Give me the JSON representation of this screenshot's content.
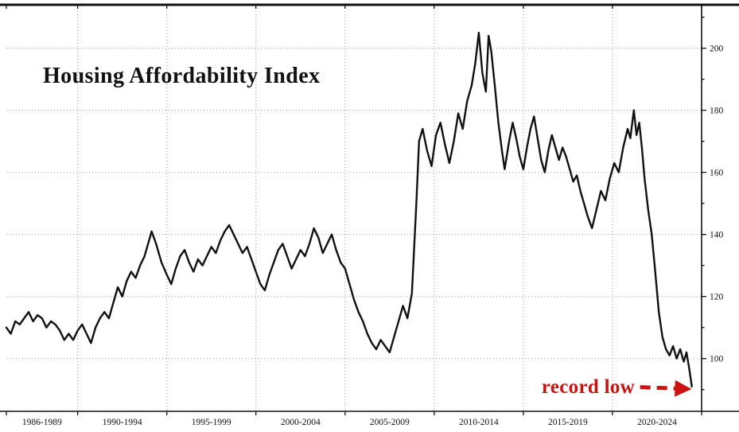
{
  "figure": {
    "background": "#ffffff"
  },
  "chart_data": {
    "type": "line",
    "title": "Housing Affordability Index",
    "xlabel": "",
    "ylabel": "",
    "grid": true,
    "legend": "none",
    "axis_color": "#111111",
    "grid_color": "#9a9a9a",
    "xlim": [
      1986,
      2025
    ],
    "ylim": [
      83,
      214
    ],
    "yticks": [
      100,
      120,
      140,
      160,
      180,
      200
    ],
    "y_minor_step": 10,
    "x_boundaries": [
      1986,
      1990,
      1995,
      2000,
      2005,
      2010,
      2015,
      2020,
      2025
    ],
    "x_period_labels": [
      {
        "label": "1986-1989",
        "start": 1986,
        "end": 1990
      },
      {
        "label": "1990-1994",
        "start": 1990,
        "end": 1995
      },
      {
        "label": "1995-1999",
        "start": 1995,
        "end": 2000
      },
      {
        "label": "2000-2004",
        "start": 2000,
        "end": 2005
      },
      {
        "label": "2005-2009",
        "start": 2005,
        "end": 2010
      },
      {
        "label": "2010-2014",
        "start": 2010,
        "end": 2015
      },
      {
        "label": "2015-2019",
        "start": 2015,
        "end": 2020
      },
      {
        "label": "2020-2024",
        "start": 2020,
        "end": 2025
      }
    ],
    "annotation": {
      "text": "record low",
      "color": "#cc1111",
      "arrow": {
        "from": [
          2021.55,
          90.8
        ],
        "to": [
          2024.25,
          90.2
        ]
      }
    },
    "series": [
      {
        "name": "Housing Affordability Index",
        "color": "#111111",
        "points": [
          [
            1986.0,
            110
          ],
          [
            1986.25,
            108
          ],
          [
            1986.5,
            112
          ],
          [
            1986.75,
            111
          ],
          [
            1987.0,
            113
          ],
          [
            1987.25,
            115
          ],
          [
            1987.5,
            112
          ],
          [
            1987.75,
            114
          ],
          [
            1988.0,
            113
          ],
          [
            1988.25,
            110
          ],
          [
            1988.5,
            112
          ],
          [
            1988.75,
            111
          ],
          [
            1989.0,
            109
          ],
          [
            1989.25,
            106
          ],
          [
            1989.5,
            108
          ],
          [
            1989.75,
            106
          ],
          [
            1990.0,
            109
          ],
          [
            1990.25,
            111
          ],
          [
            1990.5,
            108
          ],
          [
            1990.75,
            105
          ],
          [
            1991.0,
            110
          ],
          [
            1991.25,
            113
          ],
          [
            1991.5,
            115
          ],
          [
            1991.75,
            113
          ],
          [
            1992.0,
            118
          ],
          [
            1992.25,
            123
          ],
          [
            1992.5,
            120
          ],
          [
            1992.75,
            125
          ],
          [
            1993.0,
            128
          ],
          [
            1993.25,
            126
          ],
          [
            1993.5,
            130
          ],
          [
            1993.75,
            133
          ],
          [
            1994.0,
            138
          ],
          [
            1994.15,
            141
          ],
          [
            1994.4,
            137
          ],
          [
            1994.7,
            131
          ],
          [
            1995.0,
            127
          ],
          [
            1995.25,
            124
          ],
          [
            1995.5,
            129
          ],
          [
            1995.75,
            133
          ],
          [
            1996.0,
            135
          ],
          [
            1996.25,
            131
          ],
          [
            1996.5,
            128
          ],
          [
            1996.75,
            132
          ],
          [
            1997.0,
            130
          ],
          [
            1997.25,
            133
          ],
          [
            1997.5,
            136
          ],
          [
            1997.75,
            134
          ],
          [
            1998.0,
            138
          ],
          [
            1998.25,
            141
          ],
          [
            1998.5,
            143
          ],
          [
            1998.75,
            140
          ],
          [
            1999.0,
            137
          ],
          [
            1999.25,
            134
          ],
          [
            1999.5,
            136
          ],
          [
            1999.75,
            132
          ],
          [
            2000.0,
            128
          ],
          [
            2000.25,
            124
          ],
          [
            2000.5,
            122
          ],
          [
            2000.75,
            127
          ],
          [
            2001.0,
            131
          ],
          [
            2001.25,
            135
          ],
          [
            2001.5,
            137
          ],
          [
            2001.75,
            133
          ],
          [
            2002.0,
            129
          ],
          [
            2002.25,
            132
          ],
          [
            2002.5,
            135
          ],
          [
            2002.75,
            133
          ],
          [
            2003.0,
            137
          ],
          [
            2003.25,
            142
          ],
          [
            2003.5,
            139
          ],
          [
            2003.75,
            134
          ],
          [
            2004.0,
            137
          ],
          [
            2004.25,
            140
          ],
          [
            2004.5,
            135
          ],
          [
            2004.75,
            131
          ],
          [
            2005.0,
            129
          ],
          [
            2005.25,
            124
          ],
          [
            2005.5,
            119
          ],
          [
            2005.75,
            115
          ],
          [
            2006.0,
            112
          ],
          [
            2006.25,
            108
          ],
          [
            2006.5,
            105
          ],
          [
            2006.75,
            103
          ],
          [
            2007.0,
            106
          ],
          [
            2007.25,
            104
          ],
          [
            2007.5,
            102
          ],
          [
            2007.75,
            107
          ],
          [
            2008.0,
            112
          ],
          [
            2008.25,
            117
          ],
          [
            2008.5,
            113
          ],
          [
            2008.75,
            121
          ],
          [
            2009.0,
            150
          ],
          [
            2009.15,
            170
          ],
          [
            2009.35,
            174
          ],
          [
            2009.6,
            167
          ],
          [
            2009.85,
            162
          ],
          [
            2010.1,
            172
          ],
          [
            2010.35,
            176
          ],
          [
            2010.6,
            169
          ],
          [
            2010.85,
            163
          ],
          [
            2011.1,
            170
          ],
          [
            2011.35,
            179
          ],
          [
            2011.6,
            174
          ],
          [
            2011.85,
            183
          ],
          [
            2012.1,
            188
          ],
          [
            2012.3,
            195
          ],
          [
            2012.5,
            205
          ],
          [
            2012.7,
            192
          ],
          [
            2012.9,
            186
          ],
          [
            2013.05,
            204
          ],
          [
            2013.2,
            199
          ],
          [
            2013.4,
            188
          ],
          [
            2013.6,
            176
          ],
          [
            2013.8,
            167
          ],
          [
            2013.95,
            161
          ],
          [
            2014.2,
            170
          ],
          [
            2014.4,
            176
          ],
          [
            2014.6,
            171
          ],
          [
            2014.8,
            165
          ],
          [
            2015.0,
            161
          ],
          [
            2015.2,
            168
          ],
          [
            2015.4,
            174
          ],
          [
            2015.6,
            178
          ],
          [
            2015.8,
            171
          ],
          [
            2016.0,
            164
          ],
          [
            2016.2,
            160
          ],
          [
            2016.4,
            167
          ],
          [
            2016.6,
            172
          ],
          [
            2016.8,
            168
          ],
          [
            2017.0,
            164
          ],
          [
            2017.2,
            168
          ],
          [
            2017.4,
            165
          ],
          [
            2017.6,
            161
          ],
          [
            2017.8,
            157
          ],
          [
            2018.0,
            159
          ],
          [
            2018.2,
            154
          ],
          [
            2018.4,
            150
          ],
          [
            2018.6,
            146
          ],
          [
            2018.85,
            142
          ],
          [
            2019.1,
            148
          ],
          [
            2019.35,
            154
          ],
          [
            2019.6,
            151
          ],
          [
            2019.85,
            158
          ],
          [
            2020.1,
            163
          ],
          [
            2020.35,
            160
          ],
          [
            2020.6,
            168
          ],
          [
            2020.85,
            174
          ],
          [
            2021.0,
            171
          ],
          [
            2021.2,
            180
          ],
          [
            2021.35,
            172
          ],
          [
            2021.5,
            176
          ],
          [
            2021.65,
            168
          ],
          [
            2021.8,
            158
          ],
          [
            2022.0,
            148
          ],
          [
            2022.2,
            140
          ],
          [
            2022.4,
            128
          ],
          [
            2022.6,
            115
          ],
          [
            2022.8,
            107
          ],
          [
            2023.0,
            103
          ],
          [
            2023.2,
            101
          ],
          [
            2023.4,
            104
          ],
          [
            2023.6,
            100
          ],
          [
            2023.8,
            103
          ],
          [
            2024.0,
            99
          ],
          [
            2024.15,
            102
          ],
          [
            2024.3,
            97
          ],
          [
            2024.45,
            91
          ]
        ]
      }
    ]
  }
}
